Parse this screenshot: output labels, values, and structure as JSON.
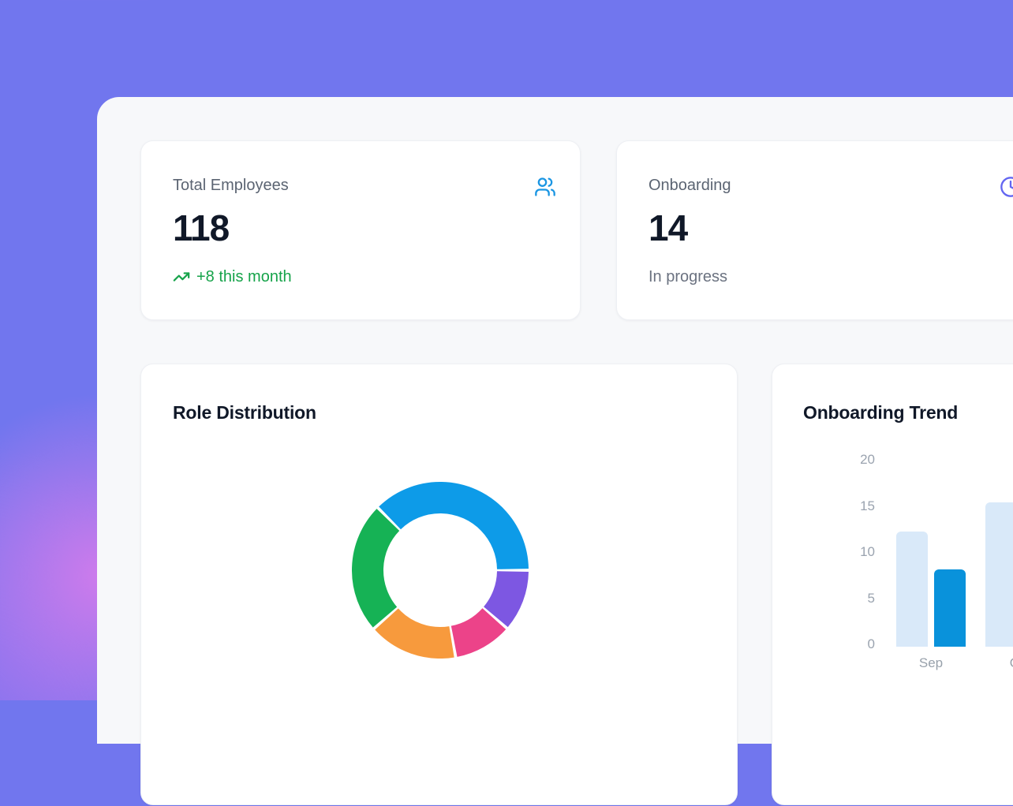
{
  "theme": {
    "background_purple": "#7176ee",
    "glow_pink": "#e67deb",
    "panel_bg": "#f7f8fa",
    "card_bg": "#ffffff",
    "text_dark": "#101828",
    "text_gray": "#5b6472",
    "positive_green": "#16a34a",
    "users_icon_blue": "#1b96e3",
    "clock_icon_indigo": "#6366f1"
  },
  "stats": [
    {
      "label": "Total Employees",
      "value": "118",
      "sub": "+8 this month",
      "icon": "users-icon"
    },
    {
      "label": "Onboarding",
      "value": "14",
      "sub": "In progress",
      "icon": "clock-icon"
    }
  ],
  "chart_data": [
    {
      "type": "pie",
      "title": "Role Distribution",
      "donut": true,
      "start_angle": -45,
      "legend": "none",
      "segments": [
        {
          "name": "blue",
          "color": "#0d9be8",
          "percent": 37.5
        },
        {
          "name": "purple",
          "color": "#7d57e2",
          "percent": 11.4
        },
        {
          "name": "pink",
          "color": "#ec4389",
          "percent": 10.8
        },
        {
          "name": "orange",
          "color": "#f79a3d",
          "percent": 16.3
        },
        {
          "name": "green",
          "color": "#16b255",
          "percent": 24.0
        }
      ]
    },
    {
      "type": "bar",
      "title": "Onboarding Trend",
      "categories": [
        "Sep",
        "Oct"
      ],
      "series": [
        {
          "name": "light",
          "color": "#d9e9f9",
          "values": [
            12,
            15
          ]
        },
        {
          "name": "dark",
          "color": "#0992db",
          "values": [
            8,
            null
          ]
        }
      ],
      "ylabel_ticks": [
        20,
        15,
        10,
        5,
        0
      ],
      "ylim": [
        0,
        20
      ],
      "grid": false,
      "legend_position": "none",
      "layout_note": "right portion of chart cut off by viewport edge"
    }
  ]
}
